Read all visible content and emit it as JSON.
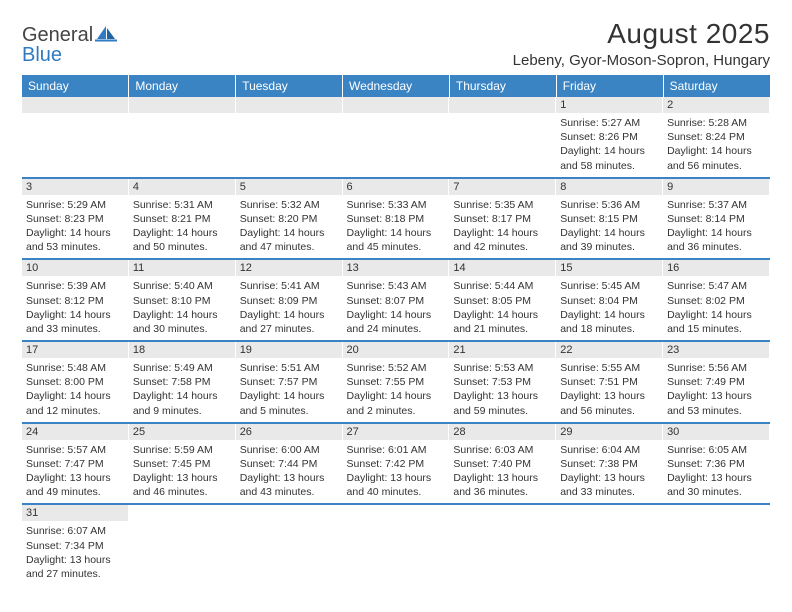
{
  "logo": {
    "general": "General",
    "blue": "Blue"
  },
  "title": "August 2025",
  "location": "Lebeny, Gyor-Moson-Sopron, Hungary",
  "colors": {
    "header_bg": "#3b84c4",
    "header_fg": "#ffffff",
    "daynum_bg": "#e9e9e9",
    "border": "#3b84c4",
    "logo_blue": "#2f7ac0",
    "text": "#333333"
  },
  "weekdays": [
    "Sunday",
    "Monday",
    "Tuesday",
    "Wednesday",
    "Thursday",
    "Friday",
    "Saturday"
  ],
  "weeks": [
    [
      null,
      null,
      null,
      null,
      null,
      {
        "n": "1",
        "sr": "5:27 AM",
        "ss": "8:26 PM",
        "dl": "14 hours and 58 minutes."
      },
      {
        "n": "2",
        "sr": "5:28 AM",
        "ss": "8:24 PM",
        "dl": "14 hours and 56 minutes."
      }
    ],
    [
      {
        "n": "3",
        "sr": "5:29 AM",
        "ss": "8:23 PM",
        "dl": "14 hours and 53 minutes."
      },
      {
        "n": "4",
        "sr": "5:31 AM",
        "ss": "8:21 PM",
        "dl": "14 hours and 50 minutes."
      },
      {
        "n": "5",
        "sr": "5:32 AM",
        "ss": "8:20 PM",
        "dl": "14 hours and 47 minutes."
      },
      {
        "n": "6",
        "sr": "5:33 AM",
        "ss": "8:18 PM",
        "dl": "14 hours and 45 minutes."
      },
      {
        "n": "7",
        "sr": "5:35 AM",
        "ss": "8:17 PM",
        "dl": "14 hours and 42 minutes."
      },
      {
        "n": "8",
        "sr": "5:36 AM",
        "ss": "8:15 PM",
        "dl": "14 hours and 39 minutes."
      },
      {
        "n": "9",
        "sr": "5:37 AM",
        "ss": "8:14 PM",
        "dl": "14 hours and 36 minutes."
      }
    ],
    [
      {
        "n": "10",
        "sr": "5:39 AM",
        "ss": "8:12 PM",
        "dl": "14 hours and 33 minutes."
      },
      {
        "n": "11",
        "sr": "5:40 AM",
        "ss": "8:10 PM",
        "dl": "14 hours and 30 minutes."
      },
      {
        "n": "12",
        "sr": "5:41 AM",
        "ss": "8:09 PM",
        "dl": "14 hours and 27 minutes."
      },
      {
        "n": "13",
        "sr": "5:43 AM",
        "ss": "8:07 PM",
        "dl": "14 hours and 24 minutes."
      },
      {
        "n": "14",
        "sr": "5:44 AM",
        "ss": "8:05 PM",
        "dl": "14 hours and 21 minutes."
      },
      {
        "n": "15",
        "sr": "5:45 AM",
        "ss": "8:04 PM",
        "dl": "14 hours and 18 minutes."
      },
      {
        "n": "16",
        "sr": "5:47 AM",
        "ss": "8:02 PM",
        "dl": "14 hours and 15 minutes."
      }
    ],
    [
      {
        "n": "17",
        "sr": "5:48 AM",
        "ss": "8:00 PM",
        "dl": "14 hours and 12 minutes."
      },
      {
        "n": "18",
        "sr": "5:49 AM",
        "ss": "7:58 PM",
        "dl": "14 hours and 9 minutes."
      },
      {
        "n": "19",
        "sr": "5:51 AM",
        "ss": "7:57 PM",
        "dl": "14 hours and 5 minutes."
      },
      {
        "n": "20",
        "sr": "5:52 AM",
        "ss": "7:55 PM",
        "dl": "14 hours and 2 minutes."
      },
      {
        "n": "21",
        "sr": "5:53 AM",
        "ss": "7:53 PM",
        "dl": "13 hours and 59 minutes."
      },
      {
        "n": "22",
        "sr": "5:55 AM",
        "ss": "7:51 PM",
        "dl": "13 hours and 56 minutes."
      },
      {
        "n": "23",
        "sr": "5:56 AM",
        "ss": "7:49 PM",
        "dl": "13 hours and 53 minutes."
      }
    ],
    [
      {
        "n": "24",
        "sr": "5:57 AM",
        "ss": "7:47 PM",
        "dl": "13 hours and 49 minutes."
      },
      {
        "n": "25",
        "sr": "5:59 AM",
        "ss": "7:45 PM",
        "dl": "13 hours and 46 minutes."
      },
      {
        "n": "26",
        "sr": "6:00 AM",
        "ss": "7:44 PM",
        "dl": "13 hours and 43 minutes."
      },
      {
        "n": "27",
        "sr": "6:01 AM",
        "ss": "7:42 PM",
        "dl": "13 hours and 40 minutes."
      },
      {
        "n": "28",
        "sr": "6:03 AM",
        "ss": "7:40 PM",
        "dl": "13 hours and 36 minutes."
      },
      {
        "n": "29",
        "sr": "6:04 AM",
        "ss": "7:38 PM",
        "dl": "13 hours and 33 minutes."
      },
      {
        "n": "30",
        "sr": "6:05 AM",
        "ss": "7:36 PM",
        "dl": "13 hours and 30 minutes."
      }
    ],
    [
      {
        "n": "31",
        "sr": "6:07 AM",
        "ss": "7:34 PM",
        "dl": "13 hours and 27 minutes."
      },
      null,
      null,
      null,
      null,
      null,
      null
    ]
  ],
  "labels": {
    "sunrise": "Sunrise:",
    "sunset": "Sunset:",
    "daylight": "Daylight:"
  }
}
